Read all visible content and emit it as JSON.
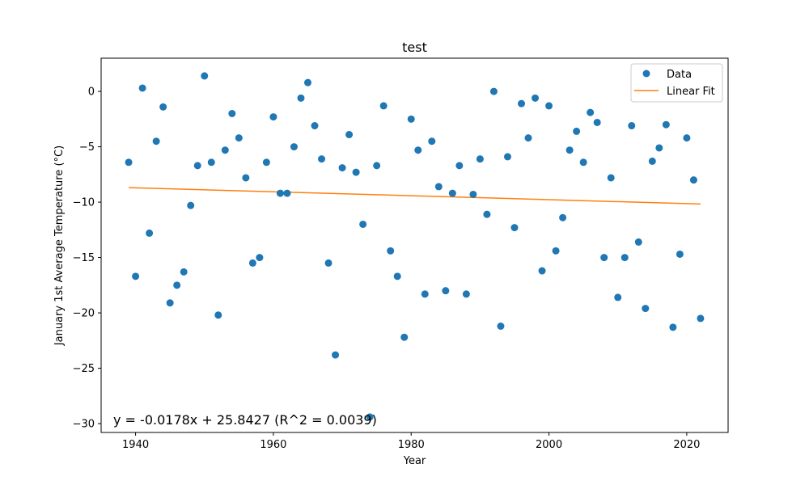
{
  "chart_data": {
    "type": "scatter",
    "title": "test",
    "xlabel": "Year",
    "ylabel": "January 1st Average Temperature (°C)",
    "xlim": [
      1935,
      2026
    ],
    "ylim": [
      -30.8,
      3
    ],
    "xticks": [
      1940,
      1960,
      1980,
      2000,
      2020
    ],
    "yticks": [
      0,
      -5,
      -10,
      -15,
      -20,
      -25,
      -30
    ],
    "grid": false,
    "legend_position": "top-right",
    "colors": {
      "data": "#1f77b4",
      "fit": "#ff7f0e"
    },
    "series": [
      {
        "name": "Data",
        "kind": "scatter",
        "x": [
          1939,
          1940,
          1941,
          1942,
          1943,
          1944,
          1945,
          1946,
          1947,
          1948,
          1949,
          1950,
          1951,
          1952,
          1953,
          1954,
          1955,
          1956,
          1957,
          1958,
          1959,
          1960,
          1961,
          1962,
          1963,
          1964,
          1965,
          1966,
          1967,
          1968,
          1969,
          1970,
          1971,
          1972,
          1973,
          1974,
          1975,
          1976,
          1977,
          1978,
          1979,
          1980,
          1981,
          1982,
          1983,
          1984,
          1985,
          1986,
          1987,
          1988,
          1989,
          1990,
          1991,
          1992,
          1993,
          1994,
          1995,
          1996,
          1997,
          1998,
          1999,
          2000,
          2001,
          2002,
          2003,
          2004,
          2005,
          2006,
          2007,
          2008,
          2009,
          2010,
          2011,
          2012,
          2013,
          2014,
          2015,
          2016,
          2017,
          2018,
          2019,
          2020,
          2021,
          2022
        ],
        "y": [
          -6.4,
          -16.7,
          0.3,
          -12.8,
          -4.5,
          -1.4,
          -19.1,
          -17.5,
          -16.3,
          -10.3,
          -6.7,
          1.4,
          -6.4,
          -20.2,
          -5.3,
          -2.0,
          -4.2,
          -7.8,
          -15.5,
          -15.0,
          -6.4,
          -2.3,
          -9.2,
          -9.2,
          -5.0,
          -0.6,
          0.8,
          -3.1,
          -6.1,
          -15.5,
          -23.8,
          -6.9,
          -3.9,
          -7.3,
          -12.0,
          -29.4,
          -6.7,
          -1.3,
          -14.4,
          -16.7,
          -22.2,
          -2.5,
          -5.3,
          -18.3,
          -4.5,
          -8.6,
          -18.0,
          -9.2,
          -6.7,
          -18.3,
          -9.3,
          -6.1,
          -11.1,
          0.0,
          -21.2,
          -5.9,
          -12.3,
          -1.1,
          -4.2,
          -0.6,
          -16.2,
          -1.3,
          -14.4,
          -11.4,
          -5.3,
          -3.6,
          -6.4,
          -1.9,
          -2.8,
          -15.0,
          -7.8,
          -18.6,
          -15.0,
          -3.1,
          -13.6,
          -19.6,
          -6.3,
          -5.1,
          -3.0,
          -21.3,
          -14.7,
          -4.2,
          -8.0,
          -20.5
        ]
      },
      {
        "name": "Linear Fit",
        "kind": "line",
        "x": [
          1939,
          2022
        ],
        "y": [
          -8.69,
          -10.17
        ]
      }
    ],
    "annotation": "y = -0.0178x + 25.8427 (R^2 = 0.0039)"
  }
}
